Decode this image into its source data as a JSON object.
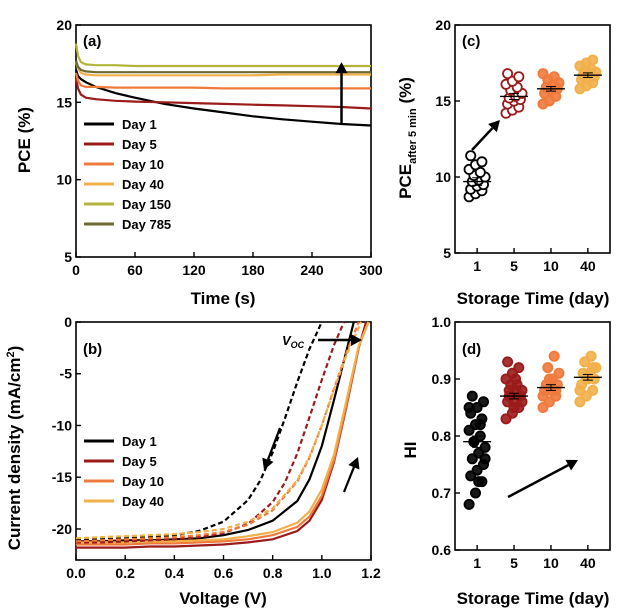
{
  "colors": {
    "day1": "#000000",
    "day5": "#9b1b1b",
    "day10": "#f07a3c",
    "day40": "#f2b04a",
    "day150": "#b3b53a",
    "day785": "#6b6a30"
  },
  "chart_data": [
    {
      "type": "line",
      "panel_label": "(a)",
      "xlabel": "Time (s)",
      "ylabel": "PCE (%)",
      "xlim": [
        0,
        300
      ],
      "ylim": [
        5,
        20
      ],
      "xticks": [
        0,
        60,
        120,
        180,
        240,
        300
      ],
      "yticks": [
        5,
        10,
        15,
        20
      ],
      "legend_position": "lower-left",
      "grid": false,
      "annotations": [
        {
          "type": "arrow",
          "direction": "up",
          "from": [
            270,
            13.6
          ],
          "to": [
            270,
            17.6
          ]
        }
      ],
      "series": [
        {
          "name": "Day 1",
          "color_key": "day1",
          "x": [
            0,
            2,
            5,
            10,
            20,
            40,
            60,
            90,
            120,
            150,
            180,
            210,
            240,
            270,
            300
          ],
          "y": [
            17.1,
            16.7,
            16.5,
            16.3,
            16.0,
            15.6,
            15.3,
            14.9,
            14.6,
            14.35,
            14.1,
            13.9,
            13.75,
            13.6,
            13.5
          ]
        },
        {
          "name": "Day 5",
          "color_key": "day5",
          "x": [
            0,
            2,
            5,
            10,
            20,
            40,
            60,
            90,
            120,
            150,
            180,
            210,
            240,
            270,
            300
          ],
          "y": [
            16.6,
            15.9,
            15.5,
            15.3,
            15.2,
            15.1,
            15.05,
            15.0,
            14.95,
            14.9,
            14.85,
            14.8,
            14.75,
            14.7,
            14.6
          ]
        },
        {
          "name": "Day 10",
          "color_key": "day10",
          "x": [
            0,
            2,
            5,
            10,
            20,
            40,
            60,
            90,
            120,
            150,
            180,
            210,
            240,
            270,
            300
          ],
          "y": [
            16.9,
            16.4,
            16.1,
            16.0,
            16.0,
            15.95,
            15.95,
            15.95,
            15.95,
            15.9,
            15.9,
            15.9,
            15.9,
            15.9,
            15.9
          ]
        },
        {
          "name": "Day 40",
          "color_key": "day40",
          "x": [
            0,
            2,
            5,
            10,
            20,
            40,
            60,
            90,
            120,
            150,
            180,
            210,
            240,
            270,
            300
          ],
          "y": [
            17.6,
            17.2,
            16.9,
            16.8,
            16.75,
            16.75,
            16.75,
            16.75,
            16.75,
            16.75,
            16.75,
            16.8,
            16.8,
            16.8,
            16.8
          ]
        },
        {
          "name": "Day 150",
          "color_key": "day150",
          "x": [
            0,
            2,
            5,
            10,
            20,
            40,
            60,
            90,
            120,
            150,
            180,
            210,
            240,
            270,
            300
          ],
          "y": [
            18.8,
            18.0,
            17.6,
            17.45,
            17.4,
            17.4,
            17.35,
            17.35,
            17.35,
            17.35,
            17.35,
            17.35,
            17.35,
            17.35,
            17.35
          ]
        },
        {
          "name": "Day 785",
          "color_key": "day785",
          "x": [
            0,
            2,
            5,
            10,
            20,
            40,
            60,
            90,
            120,
            150,
            180,
            210,
            240,
            270,
            300
          ],
          "y": [
            17.7,
            17.3,
            17.1,
            17.0,
            16.95,
            16.95,
            16.95,
            16.95,
            16.95,
            16.95,
            16.95,
            16.95,
            16.95,
            16.95,
            16.95
          ]
        }
      ]
    },
    {
      "type": "line",
      "panel_label": "(b)",
      "xlabel": "Voltage (V)",
      "ylabel": "Current density (mA/cm",
      "ylabel_sup": "2",
      "ylabel_end": ")",
      "xlim": [
        0.0,
        1.2
      ],
      "ylim": [
        -23,
        0
      ],
      "xticks": [
        0.0,
        0.2,
        0.4,
        0.6,
        0.8,
        1.0,
        1.2
      ],
      "yticks": [
        0,
        -5,
        -10,
        -15,
        -20
      ],
      "legend_position": "lower-left",
      "grid": false,
      "voc_label": "V",
      "voc_sub": "OC",
      "line_styles": "solid = forward scan, dashed = reverse scan",
      "series": [
        {
          "name": "Day 1",
          "color_key": "day1",
          "style": "solid",
          "x": [
            0,
            0.1,
            0.2,
            0.3,
            0.4,
            0.5,
            0.6,
            0.7,
            0.8,
            0.9,
            0.95,
            1.0,
            1.05,
            1.1,
            1.13
          ],
          "y": [
            -21.2,
            -21.2,
            -21.1,
            -21.1,
            -21.0,
            -20.9,
            -20.6,
            -20.1,
            -19.2,
            -17.3,
            -15.2,
            -12.0,
            -7.5,
            -2.8,
            0
          ]
        },
        {
          "name": "Day 5",
          "color_key": "day5",
          "style": "solid",
          "x": [
            0,
            0.1,
            0.2,
            0.3,
            0.4,
            0.5,
            0.6,
            0.7,
            0.8,
            0.9,
            0.95,
            1.0,
            1.05,
            1.1,
            1.15,
            1.18
          ],
          "y": [
            -21.8,
            -21.8,
            -21.8,
            -21.7,
            -21.7,
            -21.6,
            -21.5,
            -21.3,
            -21.0,
            -20.2,
            -19.2,
            -17.2,
            -13.5,
            -8.2,
            -2.5,
            0
          ]
        },
        {
          "name": "Day 10",
          "color_key": "day10",
          "style": "solid",
          "x": [
            0,
            0.1,
            0.2,
            0.3,
            0.4,
            0.5,
            0.6,
            0.7,
            0.8,
            0.9,
            0.95,
            1.0,
            1.05,
            1.1,
            1.15,
            1.19
          ],
          "y": [
            -21.5,
            -21.5,
            -21.5,
            -21.4,
            -21.4,
            -21.3,
            -21.2,
            -21.0,
            -20.6,
            -19.8,
            -18.8,
            -16.8,
            -13.3,
            -8.0,
            -2.4,
            0
          ]
        },
        {
          "name": "Day 40",
          "color_key": "day40",
          "style": "solid",
          "x": [
            0,
            0.1,
            0.2,
            0.3,
            0.4,
            0.5,
            0.6,
            0.7,
            0.8,
            0.9,
            0.95,
            1.0,
            1.05,
            1.1,
            1.15,
            1.19
          ],
          "y": [
            -21.3,
            -21.3,
            -21.3,
            -21.2,
            -21.2,
            -21.1,
            -21.0,
            -20.7,
            -20.3,
            -19.4,
            -18.3,
            -16.2,
            -12.8,
            -7.6,
            -2.3,
            0
          ]
        },
        {
          "name": "Day 1 reverse",
          "color_key": "day1",
          "style": "dashed",
          "x": [
            0,
            0.1,
            0.2,
            0.3,
            0.4,
            0.5,
            0.6,
            0.7,
            0.75,
            0.8,
            0.85,
            0.9,
            0.95,
            1.0
          ],
          "y": [
            -21.0,
            -21.0,
            -20.9,
            -20.8,
            -20.6,
            -20.2,
            -19.3,
            -17.2,
            -15.3,
            -12.6,
            -9.3,
            -5.8,
            -2.6,
            0
          ]
        },
        {
          "name": "Day 5 reverse",
          "color_key": "day5",
          "style": "dashed",
          "x": [
            0,
            0.1,
            0.2,
            0.3,
            0.4,
            0.5,
            0.6,
            0.7,
            0.8,
            0.85,
            0.9,
            0.95,
            1.0,
            1.05,
            1.09
          ],
          "y": [
            -21.3,
            -21.3,
            -21.2,
            -21.1,
            -21.0,
            -20.8,
            -20.4,
            -19.5,
            -17.4,
            -15.5,
            -12.7,
            -9.2,
            -5.6,
            -2.2,
            0
          ]
        },
        {
          "name": "Day 10 reverse",
          "color_key": "day10",
          "style": "dashed",
          "x": [
            0,
            0.1,
            0.2,
            0.3,
            0.4,
            0.5,
            0.6,
            0.7,
            0.8,
            0.9,
            0.95,
            1.0,
            1.05,
            1.1,
            1.15
          ],
          "y": [
            -21.2,
            -21.1,
            -21.0,
            -20.9,
            -20.8,
            -20.6,
            -20.3,
            -19.6,
            -18.2,
            -15.4,
            -13.1,
            -10.0,
            -6.4,
            -3.0,
            0
          ]
        },
        {
          "name": "Day 40 reverse",
          "color_key": "day40",
          "style": "dashed",
          "x": [
            0,
            0.1,
            0.2,
            0.3,
            0.4,
            0.5,
            0.6,
            0.7,
            0.8,
            0.9,
            0.95,
            1.0,
            1.05,
            1.1,
            1.16
          ],
          "y": [
            -20.9,
            -20.8,
            -20.7,
            -20.6,
            -20.5,
            -20.3,
            -20.0,
            -19.3,
            -18.0,
            -15.3,
            -13.0,
            -10.0,
            -6.5,
            -3.2,
            0
          ]
        }
      ]
    },
    {
      "type": "scatter",
      "panel_label": "(c)",
      "xlabel": "Storage Time (day)",
      "ylabel": "PCE",
      "ylabel_sub": "after 5 min",
      "ylabel_end": " (%)",
      "categories": [
        "1",
        "5",
        "10",
        "40"
      ],
      "ylim": [
        5,
        20
      ],
      "yticks": [
        5,
        10,
        15,
        20
      ],
      "grid": false,
      "annotations": [
        {
          "type": "arrow",
          "from_category": "1",
          "to_category": "5",
          "direction": "up-right"
        }
      ],
      "groups": [
        {
          "category": "1",
          "color_key": "day1",
          "filled": false,
          "mean": 9.7,
          "err": 0.25,
          "values": [
            8.7,
            8.9,
            9.1,
            9.2,
            9.4,
            9.5,
            9.7,
            9.8,
            10.0,
            10.1,
            10.3,
            10.5,
            10.8,
            11.0,
            11.4
          ]
        },
        {
          "category": "5",
          "color_key": "day5",
          "filled": false,
          "mean": 15.3,
          "err": 0.2,
          "values": [
            14.2,
            14.4,
            14.6,
            14.8,
            15.0,
            15.1,
            15.2,
            15.3,
            15.5,
            15.7,
            15.9,
            16.1,
            16.3,
            16.6,
            16.8
          ]
        },
        {
          "category": "10",
          "color_key": "day10",
          "filled": true,
          "mean": 15.8,
          "err": 0.15,
          "values": [
            14.8,
            15.0,
            15.3,
            15.5,
            15.7,
            15.8,
            15.9,
            16.0,
            16.2,
            16.4,
            16.6,
            16.8
          ]
        },
        {
          "category": "40",
          "color_key": "day40",
          "filled": true,
          "mean": 16.7,
          "err": 0.15,
          "values": [
            15.8,
            16.0,
            16.2,
            16.4,
            16.5,
            16.6,
            16.7,
            16.8,
            16.9,
            17.0,
            17.1,
            17.3,
            17.5,
            17.7
          ]
        }
      ]
    },
    {
      "type": "scatter",
      "panel_label": "(d)",
      "xlabel": "Storage Time (day)",
      "ylabel": "HI",
      "categories": [
        "1",
        "5",
        "10",
        "40"
      ],
      "ylim": [
        0.6,
        1.0
      ],
      "yticks": [
        0.6,
        0.7,
        0.8,
        0.9,
        1.0
      ],
      "grid": false,
      "annotations": [
        {
          "type": "arrow",
          "from_category": "1",
          "to_category": "40",
          "direction": "up-right"
        }
      ],
      "groups": [
        {
          "category": "1",
          "color_key": "day1",
          "filled": true,
          "mean": 0.79,
          "err": 0.01,
          "values": [
            0.68,
            0.7,
            0.72,
            0.73,
            0.74,
            0.75,
            0.76,
            0.77,
            0.78,
            0.79,
            0.8,
            0.81,
            0.82,
            0.83,
            0.84,
            0.85,
            0.86,
            0.87,
            0.72,
            0.76,
            0.79,
            0.82,
            0.85
          ]
        },
        {
          "category": "5",
          "color_key": "day5",
          "filled": true,
          "mean": 0.87,
          "err": 0.005,
          "values": [
            0.83,
            0.84,
            0.85,
            0.86,
            0.86,
            0.87,
            0.87,
            0.88,
            0.88,
            0.89,
            0.89,
            0.9,
            0.91,
            0.92,
            0.93,
            0.85,
            0.87,
            0.88,
            0.9,
            0.86
          ]
        },
        {
          "category": "10",
          "color_key": "day10",
          "filled": true,
          "mean": 0.885,
          "err": 0.005,
          "values": [
            0.85,
            0.86,
            0.87,
            0.88,
            0.88,
            0.89,
            0.89,
            0.9,
            0.91,
            0.92,
            0.94,
            0.87,
            0.9,
            0.88
          ]
        },
        {
          "category": "40",
          "color_key": "day40",
          "filled": true,
          "mean": 0.903,
          "err": 0.005,
          "values": [
            0.86,
            0.87,
            0.88,
            0.89,
            0.9,
            0.9,
            0.91,
            0.91,
            0.92,
            0.93,
            0.94,
            0.88,
            0.9,
            0.92
          ]
        }
      ]
    }
  ]
}
